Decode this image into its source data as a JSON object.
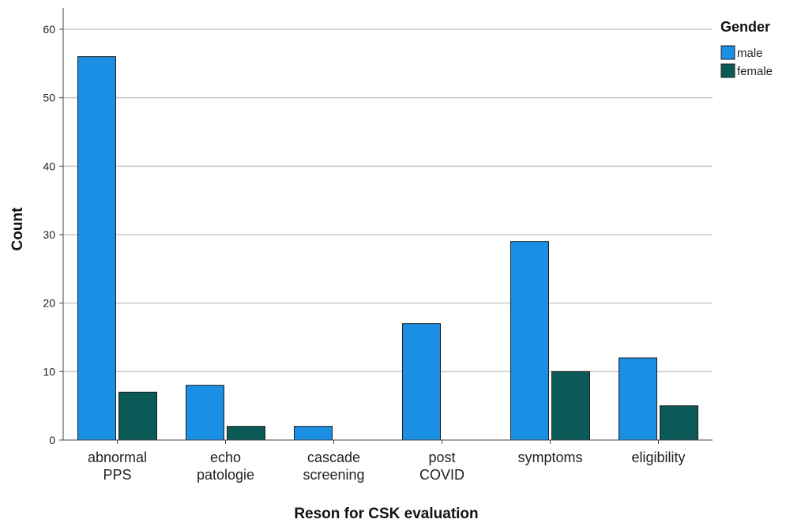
{
  "chart_data": {
    "type": "bar",
    "xlabel": "Reson for CSK evaluation",
    "ylabel": "Count",
    "ylim": [
      0,
      60
    ],
    "yticks": [
      0,
      10,
      20,
      30,
      40,
      50,
      60
    ],
    "grid": true,
    "legend_placement": "top-right",
    "categories": [
      [
        "abnormal",
        "PPS"
      ],
      [
        "echo",
        "patologie"
      ],
      [
        "cascade",
        "screening"
      ],
      [
        "post",
        "COVID"
      ],
      [
        "symptoms"
      ],
      [
        "eligibility"
      ]
    ],
    "legend_title": "Gender",
    "series": [
      {
        "name": "male",
        "color": "#1a8fe3",
        "values": [
          56,
          8,
          2,
          17,
          29,
          12
        ]
      },
      {
        "name": "female",
        "color": "#0b5a57",
        "values": [
          7,
          2,
          0,
          0,
          10,
          5
        ]
      }
    ]
  }
}
